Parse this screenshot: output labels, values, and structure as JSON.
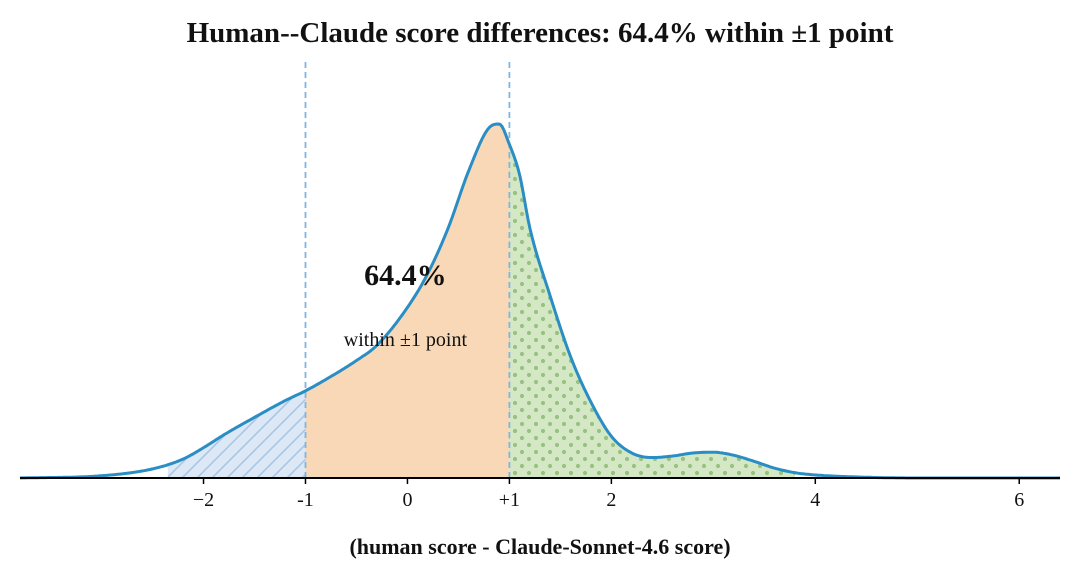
{
  "chart_data": {
    "type": "area",
    "title": "Human--Claude score differences: 64.4% within ±1 point",
    "xlabel": "(human score - Claude-Sonnet-4.6 score)",
    "ylabel": "",
    "xlim": [
      -3.8,
      6.4
    ],
    "ylim": [
      0,
      0.47
    ],
    "grid": false,
    "x_ticks": [
      {
        "value": -2,
        "label": "−2"
      },
      {
        "value": -1,
        "label": "-1"
      },
      {
        "value": 0,
        "label": "0"
      },
      {
        "value": 1,
        "label": "+1"
      },
      {
        "value": 2,
        "label": "2"
      },
      {
        "value": 4,
        "label": "4"
      },
      {
        "value": 6,
        "label": "6"
      }
    ],
    "reference_lines": [
      -1,
      1
    ],
    "density_curve": {
      "x": [
        -3.8,
        -3.0,
        -2.5,
        -2.2,
        -2.0,
        -1.8,
        -1.5,
        -1.2,
        -1.0,
        -0.8,
        -0.5,
        -0.3,
        0.0,
        0.2,
        0.4,
        0.6,
        0.8,
        0.9,
        1.0,
        1.1,
        1.2,
        1.4,
        1.6,
        1.8,
        2.0,
        2.2,
        2.4,
        2.6,
        2.8,
        3.0,
        3.2,
        3.4,
        3.6,
        3.8,
        4.0,
        4.5,
        5.0,
        6.4
      ],
      "y": [
        0.0,
        0.003,
        0.012,
        0.025,
        0.04,
        0.057,
        0.08,
        0.102,
        0.115,
        0.13,
        0.155,
        0.175,
        0.225,
        0.27,
        0.33,
        0.405,
        0.462,
        0.467,
        0.44,
        0.4,
        0.33,
        0.24,
        0.16,
        0.1,
        0.055,
        0.033,
        0.027,
        0.029,
        0.033,
        0.034,
        0.03,
        0.022,
        0.013,
        0.007,
        0.004,
        0.001,
        0.0,
        0.0
      ]
    },
    "regions": [
      {
        "name": "below",
        "from": -2.35,
        "to": -1,
        "fill": "#dce8f5",
        "pattern": "hatch",
        "pattern_color": "#a9c6e5"
      },
      {
        "name": "within",
        "from": -1,
        "to": 1,
        "fill": "#f8d8b7",
        "pattern": "none"
      },
      {
        "name": "above",
        "from": 1,
        "to": 3.8,
        "fill": "#d5e8c5",
        "pattern": "dots",
        "pattern_color": "#98c281"
      }
    ],
    "annotation": {
      "value": "64.4%",
      "text": "within ±1 point",
      "x": -0.02
    },
    "colors": {
      "curve": "#2a8ec4",
      "reference_line": "#7fb5e0",
      "axis": "#000000"
    }
  }
}
